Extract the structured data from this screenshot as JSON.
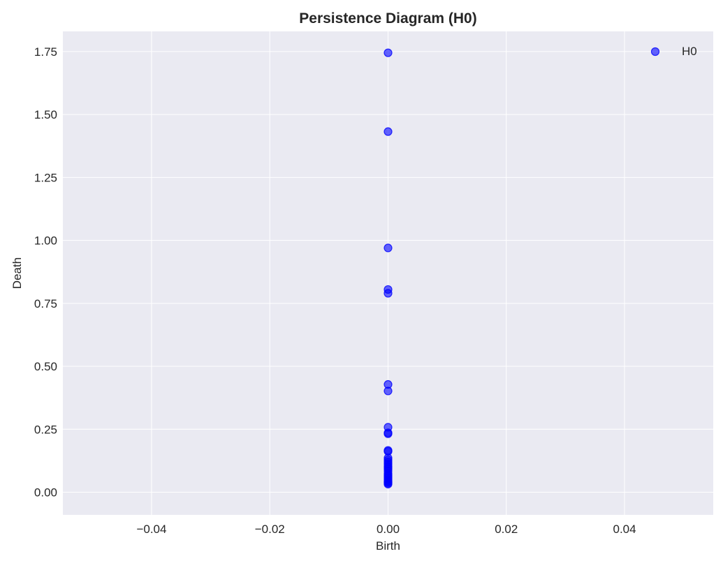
{
  "chart_data": {
    "type": "scatter",
    "title": "Persistence Diagram (H0)",
    "xlabel": "Birth",
    "ylabel": "Death",
    "xlim": [
      -0.055,
      0.055
    ],
    "ylim": [
      -0.09,
      1.83
    ],
    "xticks": [
      -0.04,
      -0.02,
      0.0,
      0.02,
      0.04
    ],
    "xtick_labels": [
      "−0.04",
      "−0.02",
      "0.00",
      "0.02",
      "0.04"
    ],
    "yticks": [
      0.0,
      0.25,
      0.5,
      0.75,
      1.0,
      1.25,
      1.5,
      1.75
    ],
    "ytick_labels": [
      "0.00",
      "0.25",
      "0.50",
      "0.75",
      "1.00",
      "1.25",
      "1.50",
      "1.75"
    ],
    "grid": true,
    "legend_position": "top-right",
    "colors": {
      "background": "#eaeaf2",
      "grid": "#ffffff",
      "marker": "#0000ff"
    },
    "series": [
      {
        "name": "H0",
        "x": [
          0,
          0,
          0,
          0,
          0,
          0,
          0,
          0,
          0,
          0,
          0,
          0,
          0,
          0,
          0,
          0,
          0,
          0,
          0,
          0,
          0,
          0,
          0,
          0,
          0,
          0,
          0,
          0,
          0
        ],
        "y": [
          1.745,
          1.432,
          0.97,
          0.805,
          0.79,
          0.428,
          0.402,
          0.258,
          0.236,
          0.232,
          0.166,
          0.162,
          0.136,
          0.128,
          0.12,
          0.112,
          0.104,
          0.098,
          0.092,
          0.084,
          0.074,
          0.068,
          0.062,
          0.056,
          0.05,
          0.044,
          0.04,
          0.036,
          0.032
        ]
      }
    ]
  }
}
